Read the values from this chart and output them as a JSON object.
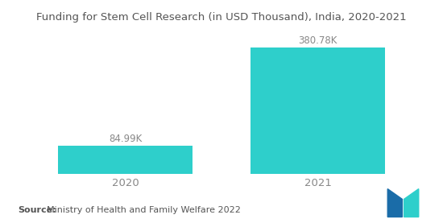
{
  "title": "Funding for Stem Cell Research (in USD Thousand), India, 2020-2021",
  "categories": [
    "2020",
    "2021"
  ],
  "values": [
    84.99,
    380.78
  ],
  "labels": [
    "84.99K",
    "380.78K"
  ],
  "bar_color": "#2ECFCB",
  "background_color": "#ffffff",
  "ylim": [
    0,
    430
  ],
  "bar_width": 0.32,
  "source_bold": "Source:",
  "source_rest": "  Ministry of Health and Family Welfare 2022",
  "title_fontsize": 9.5,
  "label_fontsize": 8.5,
  "tick_fontsize": 9.5,
  "source_fontsize": 8,
  "x_positions": [
    0.27,
    0.73
  ]
}
